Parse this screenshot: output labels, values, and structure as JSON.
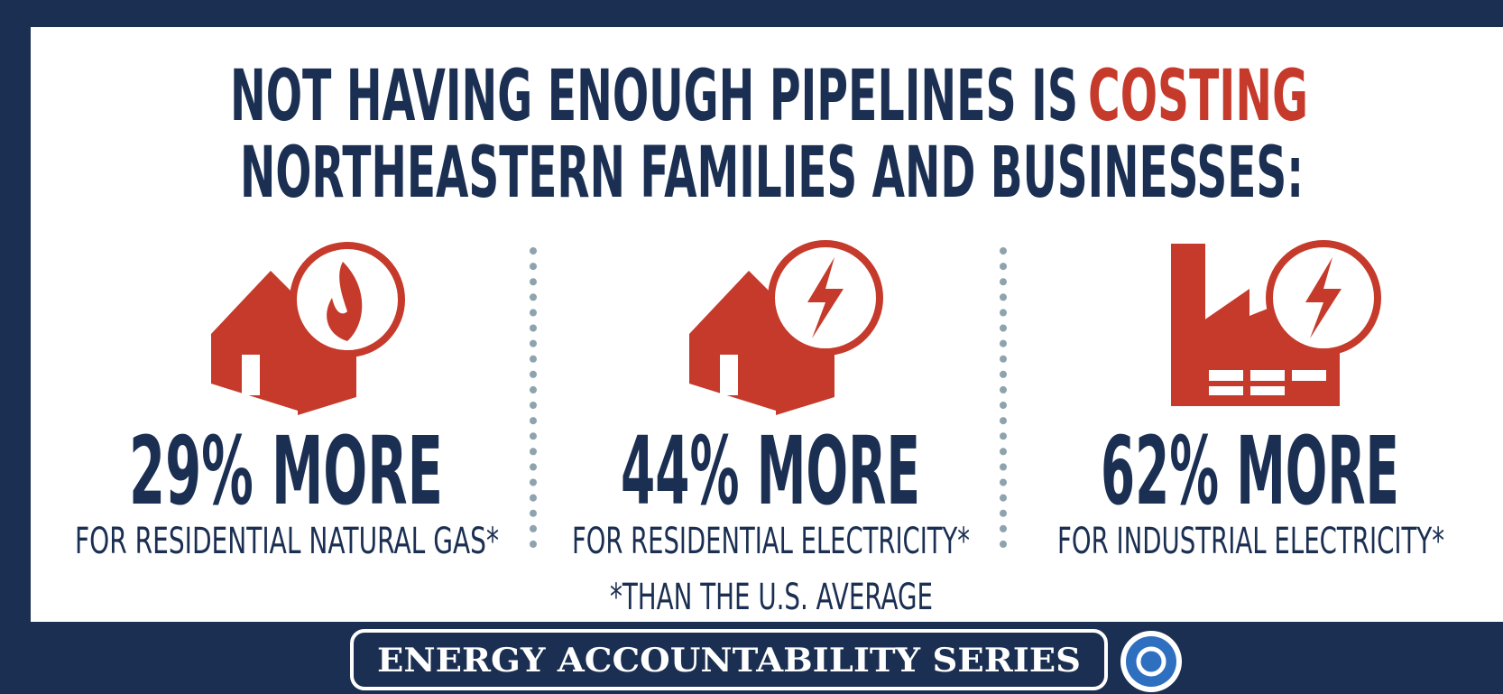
{
  "title": {
    "line1": "NOT HAVING ENOUGH PIPELINES IS",
    "highlight": "COSTING",
    "line2": "NORTHEASTERN FAMILIES AND BUSINESSES:"
  },
  "stats": [
    {
      "figure": "29% MORE",
      "label": "FOR RESIDENTIAL NATURAL GAS*"
    },
    {
      "figure": "44% MORE",
      "label": "FOR RESIDENTIAL ELECTRICITY*"
    },
    {
      "figure": "62% MORE",
      "label": "FOR INDUSTRIAL ELECTRICITY*"
    }
  ],
  "footnote": "*THAN THE U.S. AVERAGE",
  "footer": {
    "series": "ENERGY ACCOUNTABILITY SERIES"
  }
}
